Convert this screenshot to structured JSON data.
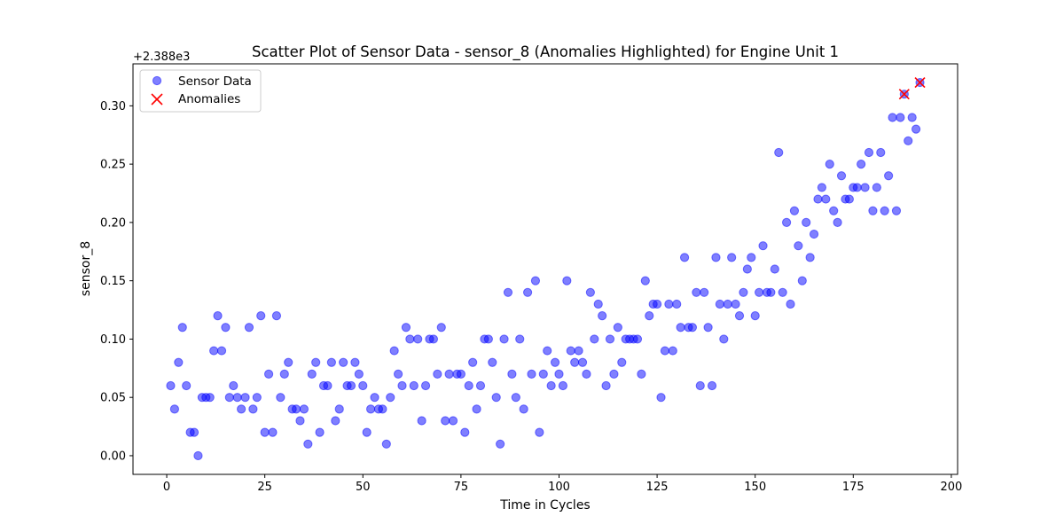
{
  "chart_data": {
    "type": "scatter",
    "title": "Scatter Plot of Sensor Data - sensor_8 (Anomalies Highlighted) for Engine Unit 1",
    "xlabel": "Time in Cycles",
    "ylabel": "sensor_8",
    "y_offset_label": "+2.388e3",
    "xlim": [
      -8.6,
      201.6
    ],
    "ylim": [
      -0.016,
      0.336
    ],
    "xticks": [
      0,
      25,
      50,
      75,
      100,
      125,
      150,
      175,
      200
    ],
    "yticks": [
      0.0,
      0.05,
      0.1,
      0.15,
      0.2,
      0.25,
      0.3
    ],
    "ytick_labels": [
      "0.00",
      "0.05",
      "0.10",
      "0.15",
      "0.20",
      "0.25",
      "0.30"
    ],
    "grid": false,
    "legend_position": "upper-left",
    "series": [
      {
        "name": "Sensor Data",
        "marker": "circle",
        "color": "#0000ff",
        "x": [
          1,
          2,
          3,
          4,
          5,
          6,
          7,
          8,
          9,
          10,
          11,
          12,
          13,
          14,
          15,
          16,
          17,
          18,
          19,
          20,
          21,
          22,
          23,
          24,
          25,
          26,
          27,
          28,
          29,
          30,
          31,
          32,
          33,
          34,
          35,
          36,
          37,
          38,
          39,
          40,
          41,
          42,
          43,
          44,
          45,
          46,
          47,
          48,
          49,
          50,
          51,
          52,
          53,
          54,
          55,
          56,
          57,
          58,
          59,
          60,
          61,
          62,
          63,
          64,
          65,
          66,
          67,
          68,
          69,
          70,
          71,
          72,
          73,
          74,
          75,
          76,
          77,
          78,
          79,
          80,
          81,
          82,
          83,
          84,
          85,
          86,
          87,
          88,
          89,
          90,
          91,
          92,
          93,
          94,
          95,
          96,
          97,
          98,
          99,
          100,
          101,
          102,
          103,
          104,
          105,
          106,
          107,
          108,
          109,
          110,
          111,
          112,
          113,
          114,
          115,
          116,
          117,
          118,
          119,
          120,
          121,
          122,
          123,
          124,
          125,
          126,
          127,
          128,
          129,
          130,
          131,
          132,
          133,
          134,
          135,
          136,
          137,
          138,
          139,
          140,
          141,
          142,
          143,
          144,
          145,
          146,
          147,
          148,
          149,
          150,
          151,
          152,
          153,
          154,
          155,
          156,
          157,
          158,
          159,
          160,
          161,
          162,
          163,
          164,
          165,
          166,
          167,
          168,
          169,
          170,
          171,
          172,
          173,
          174,
          175,
          176,
          177,
          178,
          179,
          180,
          181,
          182,
          183,
          184,
          185,
          186,
          187,
          188,
          189,
          190,
          191,
          192
        ],
        "y": [
          0.06,
          0.04,
          0.08,
          0.11,
          0.06,
          0.02,
          0.02,
          0.0,
          0.05,
          0.05,
          0.05,
          0.09,
          0.12,
          0.09,
          0.11,
          0.05,
          0.06,
          0.05,
          0.04,
          0.05,
          0.11,
          0.04,
          0.05,
          0.12,
          0.02,
          0.07,
          0.02,
          0.12,
          0.05,
          0.07,
          0.08,
          0.04,
          0.04,
          0.03,
          0.04,
          0.01,
          0.07,
          0.08,
          0.02,
          0.06,
          0.06,
          0.08,
          0.03,
          0.04,
          0.08,
          0.06,
          0.06,
          0.08,
          0.07,
          0.06,
          0.02,
          0.04,
          0.05,
          0.04,
          0.04,
          0.01,
          0.05,
          0.09,
          0.07,
          0.06,
          0.11,
          0.1,
          0.06,
          0.1,
          0.03,
          0.06,
          0.1,
          0.1,
          0.07,
          0.11,
          0.03,
          0.07,
          0.03,
          0.07,
          0.07,
          0.02,
          0.06,
          0.08,
          0.04,
          0.06,
          0.1,
          0.1,
          0.08,
          0.05,
          0.01,
          0.1,
          0.14,
          0.07,
          0.05,
          0.1,
          0.04,
          0.14,
          0.07,
          0.15,
          0.02,
          0.07,
          0.09,
          0.06,
          0.08,
          0.07,
          0.06,
          0.15,
          0.09,
          0.08,
          0.09,
          0.08,
          0.07,
          0.14,
          0.1,
          0.13,
          0.12,
          0.06,
          0.1,
          0.07,
          0.11,
          0.08,
          0.1,
          0.1,
          0.1,
          0.1,
          0.07,
          0.15,
          0.12,
          0.13,
          0.13,
          0.05,
          0.09,
          0.13,
          0.09,
          0.13,
          0.11,
          0.17,
          0.11,
          0.11,
          0.14,
          0.06,
          0.14,
          0.11,
          0.06,
          0.17,
          0.13,
          0.1,
          0.13,
          0.17,
          0.13,
          0.12,
          0.14,
          0.16,
          0.17,
          0.12,
          0.14,
          0.18,
          0.14,
          0.14,
          0.16,
          0.26,
          0.14,
          0.2,
          0.13,
          0.21,
          0.18,
          0.15,
          0.2,
          0.17,
          0.19,
          0.22,
          0.23,
          0.22,
          0.25,
          0.21,
          0.2,
          0.24,
          0.22,
          0.22,
          0.23,
          0.23,
          0.25,
          0.23,
          0.26,
          0.21,
          0.23,
          0.26,
          0.21,
          0.24,
          0.29,
          0.21,
          0.29,
          0.31,
          0.27,
          0.29,
          0.28,
          0.32
        ]
      },
      {
        "name": "Anomalies",
        "marker": "x",
        "color": "#ff0000",
        "x": [
          188,
          192
        ],
        "y": [
          0.31,
          0.32
        ]
      }
    ]
  }
}
